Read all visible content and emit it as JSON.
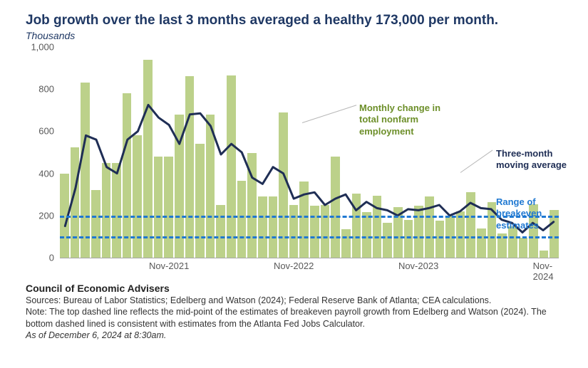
{
  "title": "Job growth over the last 3 months averaged a healthy 173,000 per month.",
  "subtitle": "Thousands",
  "chart": {
    "type": "bar+line",
    "ylim": [
      0,
      1000
    ],
    "ytick_step": 200,
    "yticks": [
      0,
      200,
      400,
      600,
      800,
      "1,000"
    ],
    "bar_color": "#bcd18a",
    "line_color": "#1f2e55",
    "line_width": 3,
    "dash_color": "#1f78d1",
    "dash_values": [
      200,
      100
    ],
    "grid_color": "#a6a6a6",
    "background": "#ffffff",
    "x_labels": [
      {
        "label": "Nov-2021",
        "index": 10
      },
      {
        "label": "Nov-2022",
        "index": 22
      },
      {
        "label": "Nov-2023",
        "index": 34
      },
      {
        "label": "Nov-2024",
        "index": 46
      }
    ],
    "bars": [
      400,
      525,
      830,
      320,
      450,
      450,
      780,
      580,
      940,
      480,
      480,
      680,
      860,
      540,
      680,
      250,
      865,
      365,
      495,
      290,
      290,
      690,
      250,
      360,
      245,
      250,
      480,
      135,
      305,
      215,
      295,
      165,
      240,
      180,
      245,
      290,
      175,
      200,
      220,
      310,
      140,
      265,
      115,
      150,
      95,
      255,
      35,
      225
    ],
    "line": [
      150,
      330,
      580,
      560,
      430,
      400,
      560,
      600,
      725,
      665,
      630,
      540,
      680,
      685,
      625,
      490,
      540,
      500,
      380,
      350,
      430,
      400,
      280,
      300,
      310,
      250,
      280,
      300,
      225,
      265,
      235,
      225,
      200,
      230,
      225,
      235,
      250,
      200,
      220,
      260,
      235,
      230,
      180,
      165,
      120,
      165,
      130,
      170
    ],
    "annotations": {
      "bars_label": "Monthly change in\ntotal nonfarm\nemployment",
      "line_label": "Three-month\nmoving average",
      "dash_label": "Range of\nbreakeven\nestimates"
    }
  },
  "footer": {
    "org": "Council of Economic Advisers",
    "sources": "Sources: Bureau of Labor Statistics; Edelberg and Watson (2024); Federal Reserve Bank of Atlanta; CEA calculations.",
    "note": "Note: The top dashed line reflects the mid-point of the estimates of breakeven payroll growth from Edelberg and Watson (2024).  The bottom dashed lined is consistent with estimates from the Atlanta Fed Jobs Calculator.",
    "asof": "As of December 6, 2024 at 8:30am."
  }
}
